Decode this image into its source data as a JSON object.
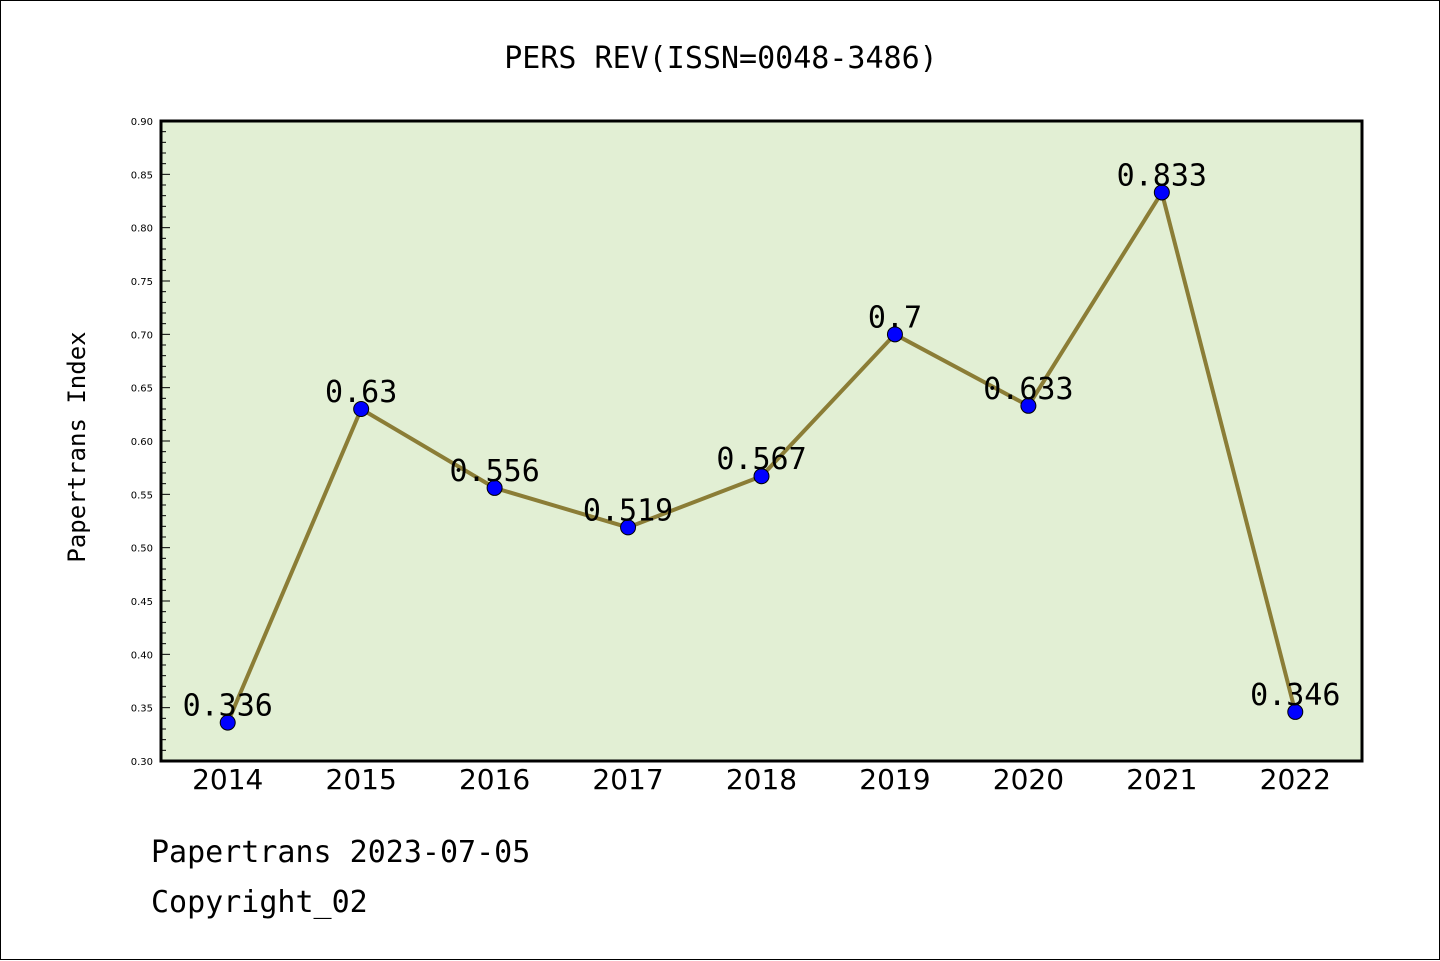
{
  "chart_data": {
    "type": "line",
    "title": "PERS REV(ISSN=0048-3486)",
    "ylabel": "Papertrans Index",
    "xlabel": "",
    "categories": [
      "2014",
      "2015",
      "2016",
      "2017",
      "2018",
      "2019",
      "2020",
      "2021",
      "2022"
    ],
    "values": [
      0.336,
      0.63,
      0.556,
      0.519,
      0.567,
      0.7,
      0.633,
      0.833,
      0.346
    ],
    "data_labels": [
      "0.336",
      "0.63",
      "0.556",
      "0.519",
      "0.567",
      "0.7",
      "0.633",
      "0.833",
      "0.346"
    ],
    "ylim": [
      0.3,
      0.9
    ],
    "yticks": [
      "0.30",
      "0.35",
      "0.40",
      "0.45",
      "0.50",
      "0.55",
      "0.60",
      "0.65",
      "0.70",
      "0.75",
      "0.80",
      "0.85",
      "0.90"
    ],
    "grid": false,
    "colors": {
      "plot_background": "#e2efd4",
      "line": "#8b7d36",
      "marker": "#0000ff"
    }
  },
  "footer": {
    "date_line": "Papertrans 2023-07-05",
    "copyright": "Copyright_02"
  }
}
